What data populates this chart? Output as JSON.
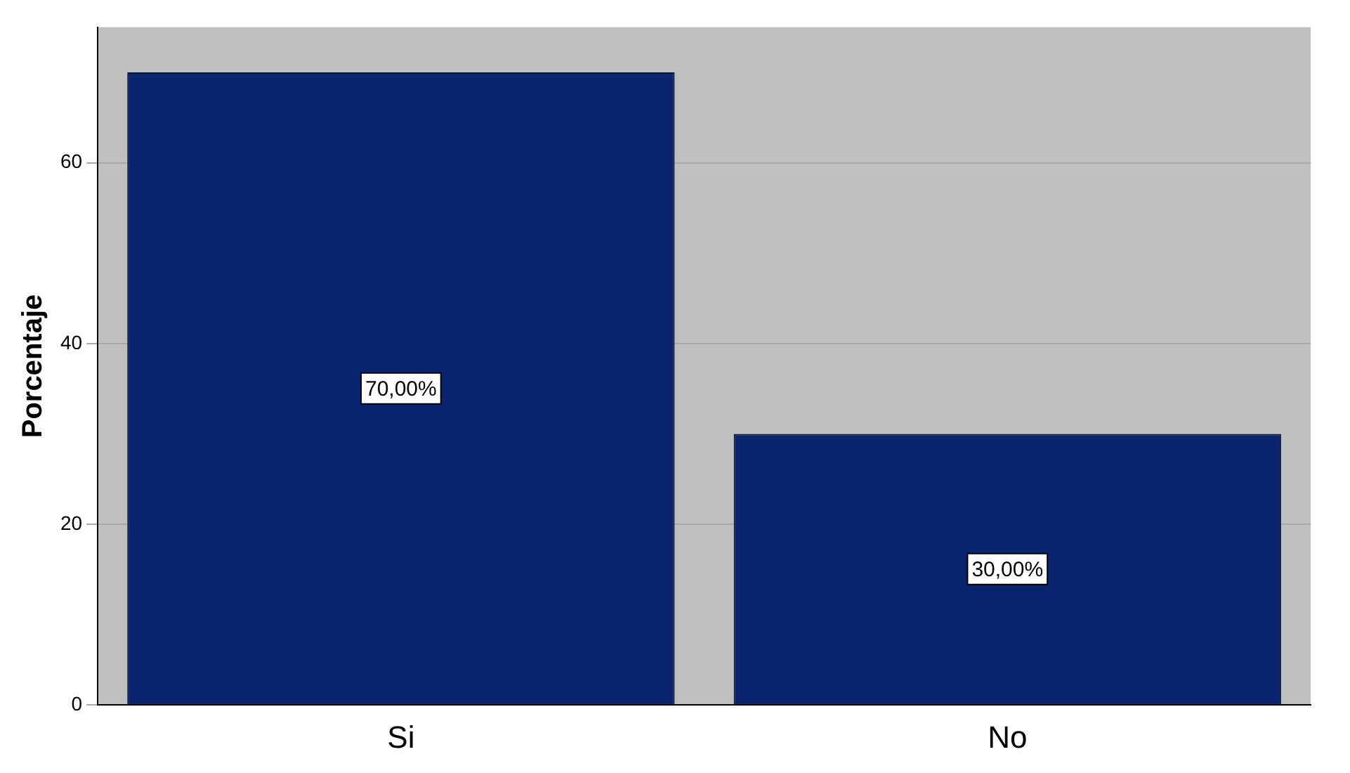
{
  "chart_data": {
    "type": "bar",
    "ylabel": "Porcentaje",
    "categories": [
      "Si",
      "No"
    ],
    "values": [
      70,
      30
    ],
    "color": "#0a2470",
    "value_labels": [
      "70,00%",
      "30,00%"
    ],
    "ylim": [
      0,
      75
    ],
    "yticks": [
      0,
      20,
      40,
      60
    ],
    "grid": "y"
  }
}
